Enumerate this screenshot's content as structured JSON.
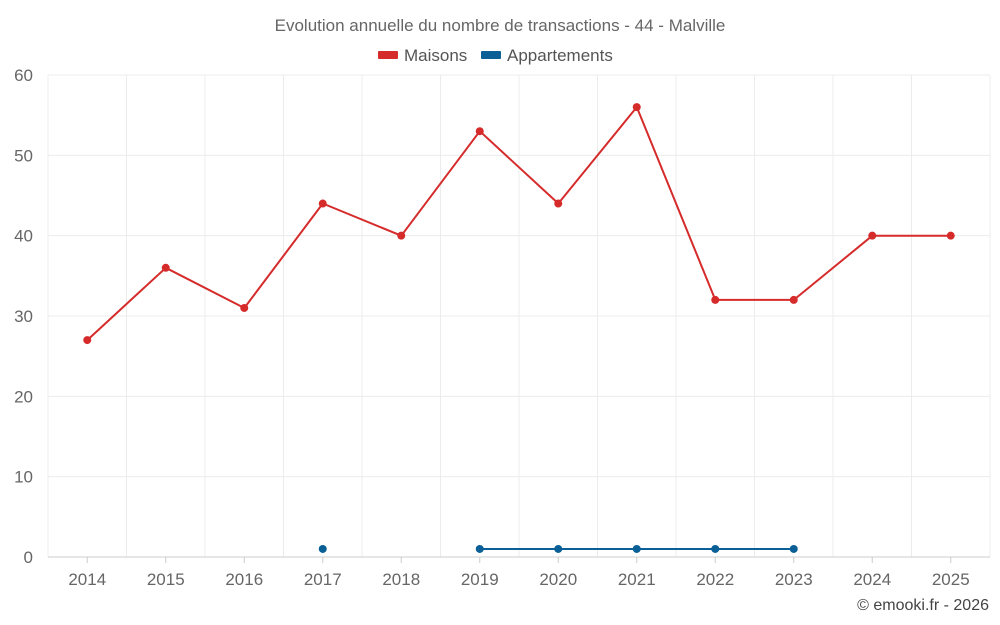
{
  "chart_data": {
    "type": "line",
    "title": "Evolution annuelle du nombre de transactions - 44 - Malville",
    "x": [
      "2014",
      "2015",
      "2016",
      "2017",
      "2018",
      "2019",
      "2020",
      "2021",
      "2022",
      "2023",
      "2024",
      "2025"
    ],
    "ylim": [
      0,
      60
    ],
    "yticks": [
      0,
      10,
      20,
      30,
      40,
      50,
      60
    ],
    "grid": true,
    "legend_position": "top-center",
    "series": [
      {
        "name": "Maisons",
        "color": "#d62b2b",
        "values": [
          27,
          36,
          31,
          44,
          40,
          53,
          44,
          56,
          32,
          32,
          40,
          40
        ]
      },
      {
        "name": "Appartements",
        "color": "#0a5f96",
        "values": [
          null,
          null,
          null,
          1,
          null,
          1,
          1,
          1,
          1,
          1,
          null,
          null
        ]
      }
    ],
    "credit": "© emooki.fr - 2026"
  }
}
